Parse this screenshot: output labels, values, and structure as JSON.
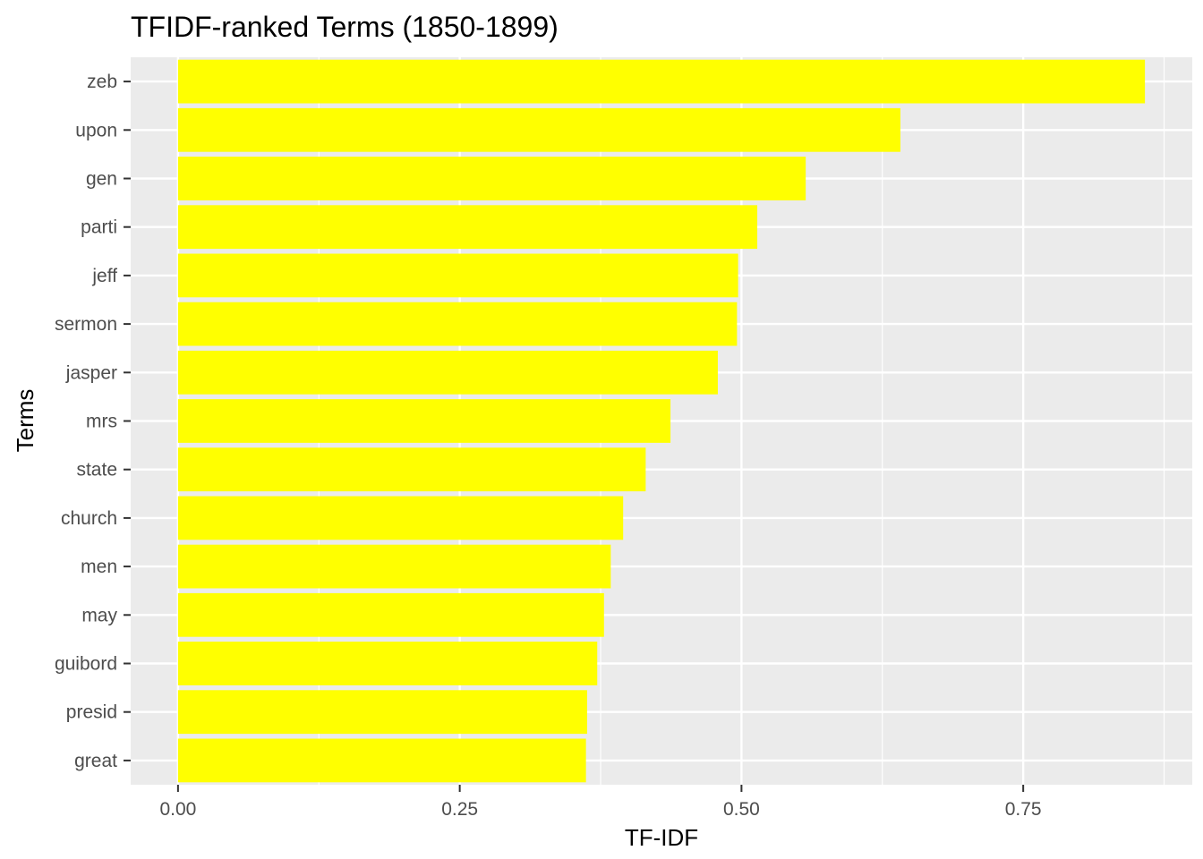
{
  "chart_data": {
    "type": "bar",
    "orientation": "horizontal",
    "title": "TFIDF-ranked Terms (1850-1899)",
    "xlabel": "TF-IDF",
    "ylabel": "Terms",
    "categories": [
      "zeb",
      "upon",
      "gen",
      "parti",
      "jeff",
      "sermon",
      "jasper",
      "mrs",
      "state",
      "church",
      "men",
      "may",
      "guibord",
      "presid",
      "great"
    ],
    "values": [
      0.858,
      0.641,
      0.557,
      0.514,
      0.497,
      0.496,
      0.479,
      0.437,
      0.415,
      0.395,
      0.384,
      0.378,
      0.372,
      0.363,
      0.362
    ],
    "xlim": [
      -0.042,
      0.9
    ],
    "xticks": [
      0,
      0.25,
      0.5,
      0.75
    ],
    "xtick_labels": [
      "0.00",
      "0.25",
      "0.50",
      "0.75"
    ],
    "grid": true,
    "colors": {
      "bar": "#ffff00",
      "panel": "#ebebeb",
      "grid": "#ffffff"
    }
  }
}
